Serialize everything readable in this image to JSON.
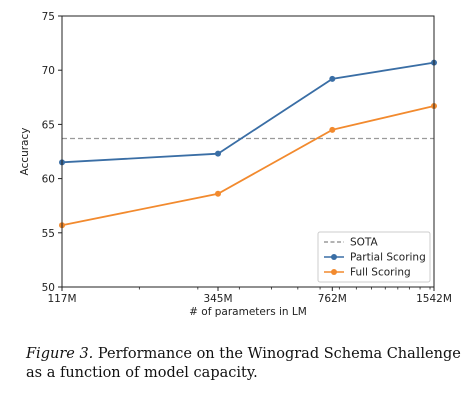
{
  "chart_data": {
    "type": "line",
    "categories": [
      "117M",
      "345M",
      "762M",
      "1542M"
    ],
    "x_positions": [
      117,
      345,
      762,
      1542
    ],
    "x_scale": "log",
    "xlabel": "# of parameters in LM",
    "ylabel": "Accuracy",
    "ylim": [
      50,
      75
    ],
    "yticks": [
      "50",
      "55",
      "60",
      "65",
      "70",
      "75"
    ],
    "grid": false,
    "legend_position": "lower-right",
    "reference_line": {
      "name": "SOTA",
      "value": 63.7,
      "color": "#9a9a9a"
    },
    "series": [
      {
        "name": "Partial Scoring",
        "values": [
          61.5,
          62.3,
          69.2,
          70.7
        ],
        "color": "#3a6ea5"
      },
      {
        "name": "Full Scoring",
        "values": [
          55.7,
          58.6,
          64.5,
          66.7
        ],
        "color": "#f28a2e"
      }
    ]
  },
  "caption": {
    "label": "Figure 3.",
    "text": " Performance on the Winograd Schema Challenge as a function of model capacity."
  }
}
